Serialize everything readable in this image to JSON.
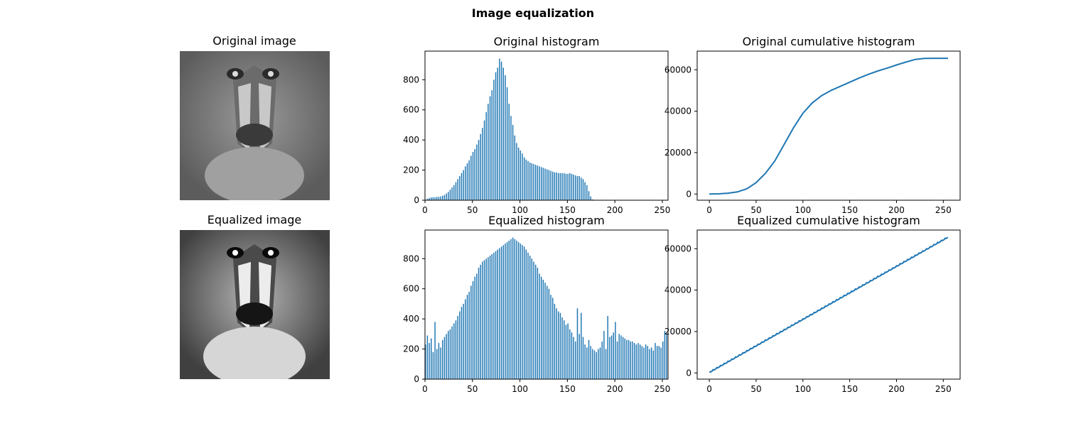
{
  "figure": {
    "title": "Image equalization"
  },
  "images": [
    {
      "title": "Original image",
      "contrast": "normal"
    },
    {
      "title": "Equalized image",
      "contrast": "high"
    }
  ],
  "colors": {
    "series": "#1f77b4",
    "axis": "#000000",
    "background": "#ffffff"
  },
  "chart_data": [
    {
      "id": "orig_hist",
      "type": "bar",
      "title": "Original histogram",
      "xlabel": "",
      "ylabel": "",
      "xlim": [
        0,
        256
      ],
      "ylim": [
        0,
        990
      ],
      "xticks": [
        0,
        50,
        100,
        150,
        200,
        250
      ],
      "yticks": [
        0,
        200,
        400,
        600,
        800
      ],
      "x": [
        0,
        2,
        4,
        6,
        8,
        10,
        12,
        14,
        16,
        18,
        20,
        22,
        24,
        26,
        28,
        30,
        32,
        34,
        36,
        38,
        40,
        42,
        44,
        46,
        48,
        50,
        52,
        54,
        56,
        58,
        60,
        62,
        64,
        66,
        68,
        70,
        72,
        74,
        76,
        78,
        80,
        82,
        84,
        86,
        88,
        90,
        92,
        94,
        96,
        98,
        100,
        102,
        104,
        106,
        108,
        110,
        112,
        114,
        116,
        118,
        120,
        122,
        124,
        126,
        128,
        130,
        132,
        134,
        136,
        138,
        140,
        142,
        144,
        146,
        148,
        150,
        152,
        154,
        156,
        158,
        160,
        162,
        164,
        166,
        168,
        170,
        172,
        174,
        176,
        178,
        180,
        182,
        184,
        186,
        188,
        190,
        192,
        194,
        196,
        198,
        200,
        202,
        204,
        206,
        208,
        210,
        212,
        214,
        216,
        218,
        220,
        222,
        224,
        226,
        228,
        230,
        232,
        234,
        236,
        238,
        240,
        242,
        244,
        246,
        248,
        250,
        252,
        254
      ],
      "values": [
        0,
        10,
        15,
        18,
        20,
        20,
        22,
        22,
        25,
        30,
        35,
        45,
        55,
        70,
        85,
        100,
        120,
        140,
        160,
        180,
        200,
        225,
        245,
        265,
        295,
        320,
        340,
        370,
        400,
        440,
        480,
        530,
        585,
        640,
        690,
        730,
        800,
        850,
        880,
        940,
        920,
        880,
        830,
        750,
        640,
        560,
        500,
        430,
        380,
        350,
        330,
        310,
        285,
        270,
        260,
        250,
        245,
        240,
        235,
        230,
        225,
        220,
        215,
        210,
        205,
        200,
        195,
        190,
        185,
        185,
        180,
        180,
        180,
        180,
        175,
        175,
        180,
        175,
        170,
        165,
        160,
        160,
        150,
        140,
        120,
        100,
        60,
        25,
        5,
        0,
        0,
        0,
        0,
        0,
        0,
        0,
        0,
        0,
        0,
        0,
        0,
        0,
        0,
        0,
        0,
        0,
        0,
        0,
        0,
        0,
        0,
        0,
        0,
        0,
        0,
        0,
        0,
        0,
        0,
        0,
        0,
        0,
        0,
        0,
        0,
        0,
        0,
        0
      ]
    },
    {
      "id": "orig_cdf",
      "type": "line",
      "title": "Original cumulative histogram",
      "xlabel": "",
      "ylabel": "",
      "xlim": [
        -13,
        268
      ],
      "ylim": [
        -3000,
        69000
      ],
      "xticks": [
        0,
        50,
        100,
        150,
        200,
        250
      ],
      "yticks": [
        0,
        20000,
        40000,
        60000
      ],
      "x": [
        0,
        10,
        20,
        30,
        40,
        50,
        60,
        70,
        80,
        90,
        100,
        110,
        120,
        130,
        140,
        150,
        160,
        170,
        180,
        190,
        200,
        210,
        220,
        230,
        240,
        255
      ],
      "values": [
        0,
        100,
        400,
        1000,
        2500,
        5500,
        10000,
        16000,
        24000,
        32000,
        39000,
        44000,
        47500,
        50000,
        52000,
        54000,
        56000,
        57800,
        59400,
        60800,
        62300,
        63700,
        65000,
        65500,
        65536,
        65536
      ]
    },
    {
      "id": "eq_hist",
      "type": "bar",
      "title": "Equalized histogram",
      "xlabel": "",
      "ylabel": "",
      "xlim": [
        0,
        256
      ],
      "ylim": [
        0,
        990
      ],
      "xticks": [
        0,
        50,
        100,
        150,
        200,
        250
      ],
      "yticks": [
        0,
        200,
        400,
        600,
        800
      ],
      "x": [
        0,
        2,
        4,
        6,
        8,
        10,
        12,
        14,
        16,
        18,
        20,
        22,
        24,
        26,
        28,
        30,
        32,
        34,
        36,
        38,
        40,
        42,
        44,
        46,
        48,
        50,
        52,
        54,
        56,
        58,
        60,
        62,
        64,
        66,
        68,
        70,
        72,
        74,
        76,
        78,
        80,
        82,
        84,
        86,
        88,
        90,
        92,
        94,
        96,
        98,
        100,
        102,
        104,
        106,
        108,
        110,
        112,
        114,
        116,
        118,
        120,
        122,
        124,
        126,
        128,
        130,
        132,
        134,
        136,
        138,
        140,
        142,
        144,
        146,
        148,
        150,
        152,
        154,
        156,
        158,
        160,
        162,
        164,
        166,
        168,
        170,
        172,
        174,
        176,
        178,
        180,
        182,
        184,
        186,
        188,
        190,
        192,
        194,
        196,
        198,
        200,
        202,
        204,
        206,
        208,
        210,
        212,
        214,
        216,
        218,
        220,
        222,
        224,
        226,
        228,
        230,
        232,
        234,
        236,
        238,
        240,
        242,
        244,
        246,
        248,
        250,
        252,
        254
      ],
      "values": [
        230,
        290,
        240,
        270,
        180,
        380,
        200,
        240,
        210,
        260,
        280,
        300,
        320,
        330,
        350,
        370,
        390,
        420,
        450,
        480,
        500,
        530,
        560,
        580,
        620,
        650,
        680,
        700,
        740,
        760,
        780,
        790,
        800,
        810,
        820,
        830,
        840,
        850,
        860,
        870,
        880,
        890,
        900,
        910,
        920,
        930,
        940,
        930,
        920,
        910,
        900,
        890,
        880,
        860,
        840,
        820,
        800,
        780,
        760,
        740,
        700,
        680,
        660,
        640,
        620,
        600,
        560,
        540,
        500,
        470,
        450,
        440,
        410,
        390,
        360,
        370,
        330,
        310,
        280,
        250,
        470,
        300,
        440,
        280,
        230,
        210,
        260,
        220,
        200,
        190,
        180,
        200,
        210,
        250,
        320,
        200,
        420,
        280,
        290,
        310,
        380,
        250,
        300,
        290,
        280,
        270,
        260,
        260,
        250,
        250,
        240,
        230,
        240,
        230,
        220,
        210,
        230,
        220,
        200,
        210,
        190,
        240,
        220,
        220,
        210,
        250,
        320,
        300
      ]
    },
    {
      "id": "eq_cdf",
      "type": "line",
      "title": "Equalized cumulative histogram",
      "xlabel": "",
      "ylabel": "",
      "xlim": [
        -13,
        268
      ],
      "ylim": [
        -3000,
        69000
      ],
      "xticks": [
        0,
        50,
        100,
        150,
        200,
        250
      ],
      "yticks": [
        0,
        20000,
        40000,
        60000
      ],
      "x": [
        0,
        255
      ],
      "values": [
        257,
        65536
      ]
    }
  ]
}
